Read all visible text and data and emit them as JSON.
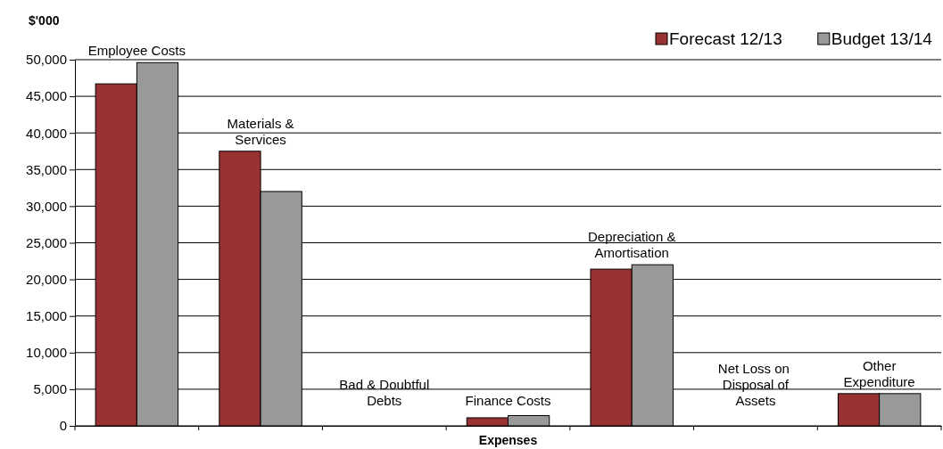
{
  "chart_data": {
    "type": "bar",
    "ylabel": "$'000",
    "xlabel": "Expenses",
    "categories": [
      "Employee Costs",
      "Materials & Services",
      "Bad & Doubtful Debts",
      "Finance Costs",
      "Depreciation & Amortisation",
      "Net Loss on  Disposal of Assets",
      "Other Expenditure"
    ],
    "series": [
      {
        "name": "Forecast 12/13",
        "color": "#993333",
        "values": [
          46700,
          37500,
          0,
          1100,
          21400,
          0,
          4400
        ]
      },
      {
        "name": "Budget 13/14",
        "color": "#999999",
        "values": [
          49600,
          32000,
          0,
          1400,
          22000,
          0,
          4400
        ]
      }
    ],
    "ylim": [
      0,
      50000
    ],
    "yticks": [
      {
        "value": 0,
        "label": "0"
      },
      {
        "value": 5000,
        "label": "5,000"
      },
      {
        "value": 10000,
        "label": "10,000"
      },
      {
        "value": 15000,
        "label": "15,000"
      },
      {
        "value": 20000,
        "label": "20,000"
      },
      {
        "value": 25000,
        "label": "25,000"
      },
      {
        "value": 30000,
        "label": "30,000"
      },
      {
        "value": 35000,
        "label": "35,000"
      },
      {
        "value": 40000,
        "label": "40,000"
      },
      {
        "value": 45000,
        "label": "45,000"
      },
      {
        "value": 50000,
        "label": "50,000"
      }
    ],
    "grid": "y",
    "legend": "top right"
  }
}
